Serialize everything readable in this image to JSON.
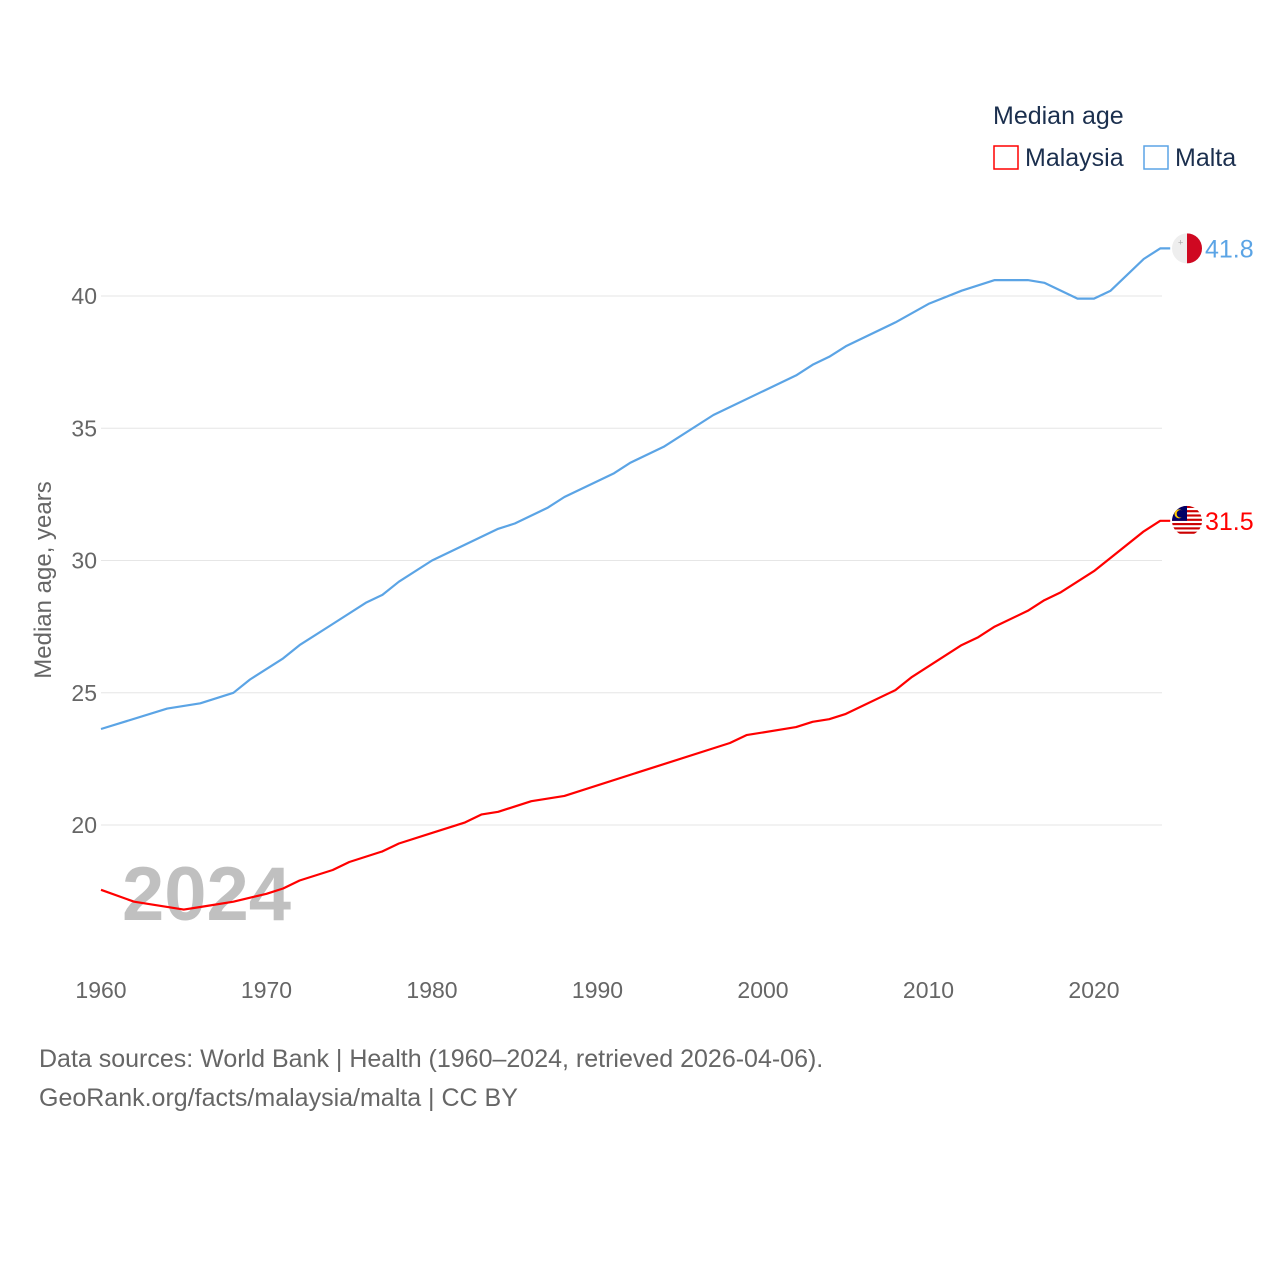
{
  "chart_data": {
    "type": "line",
    "title": "",
    "legend_title": "Median age",
    "legend_position": "top-right",
    "ylabel": "Median age, years",
    "xlabel": "",
    "xlim": [
      1960,
      2024
    ],
    "ylim": [
      15.5,
      42
    ],
    "x_ticks": [
      "1960",
      "1970",
      "1980",
      "1990",
      "2000",
      "2010",
      "2020"
    ],
    "y_ticks": [
      "20",
      "25",
      "30",
      "35",
      "40"
    ],
    "grid": true,
    "year_label": "2024",
    "series": [
      {
        "name": "Malaysia",
        "color": "#ff0000",
        "end_label": "31.5",
        "flag": "malaysia-flag",
        "points": [
          [
            1960,
            17.55
          ],
          [
            1962,
            17.1
          ],
          [
            1965,
            16.8
          ],
          [
            1966,
            16.9
          ],
          [
            1968,
            17.1
          ],
          [
            1970,
            17.4
          ],
          [
            1971,
            17.6
          ],
          [
            1972,
            17.9
          ],
          [
            1974,
            18.3
          ],
          [
            1975,
            18.6
          ],
          [
            1977,
            19.0
          ],
          [
            1978,
            19.3
          ],
          [
            1980,
            19.7
          ],
          [
            1982,
            20.1
          ],
          [
            1983,
            20.4
          ],
          [
            1984,
            20.5
          ],
          [
            1986,
            20.9
          ],
          [
            1988,
            21.1
          ],
          [
            1998,
            23.1
          ],
          [
            1999,
            23.4
          ],
          [
            2002,
            23.7
          ],
          [
            2003,
            23.9
          ],
          [
            2004,
            24.0
          ],
          [
            2005,
            24.2
          ],
          [
            2008,
            25.1
          ],
          [
            2009,
            25.6
          ],
          [
            2012,
            26.8
          ],
          [
            2013,
            27.1
          ],
          [
            2014,
            27.5
          ],
          [
            2016,
            28.1
          ],
          [
            2017,
            28.5
          ],
          [
            2018,
            28.8
          ],
          [
            2020,
            29.6
          ],
          [
            2023,
            31.1
          ],
          [
            2024,
            31.5
          ]
        ]
      },
      {
        "name": "Malta",
        "color": "#5ba4e5",
        "end_label": "41.8",
        "flag": "malta-flag",
        "points": [
          [
            1960,
            23.63
          ],
          [
            1964,
            24.4
          ],
          [
            1966,
            24.6
          ],
          [
            1968,
            25.0
          ],
          [
            1969,
            25.5
          ],
          [
            1971,
            26.3
          ],
          [
            1972,
            26.8
          ],
          [
            1974,
            27.6
          ],
          [
            1976,
            28.4
          ],
          [
            1977,
            28.7
          ],
          [
            1978,
            29.2
          ],
          [
            1980,
            30.0
          ],
          [
            1982,
            30.6
          ],
          [
            1984,
            31.2
          ],
          [
            1985,
            31.4
          ],
          [
            1987,
            32.0
          ],
          [
            1988,
            32.4
          ],
          [
            1991,
            33.3
          ],
          [
            1992,
            33.7
          ],
          [
            1994,
            34.3
          ],
          [
            1997,
            35.5
          ],
          [
            2000,
            36.4
          ],
          [
            2002,
            37.0
          ],
          [
            2003,
            37.4
          ],
          [
            2004,
            37.7
          ],
          [
            2005,
            38.1
          ],
          [
            2008,
            39.0
          ],
          [
            2010,
            39.7
          ],
          [
            2012,
            40.2
          ],
          [
            2014,
            40.6
          ],
          [
            2016,
            40.6
          ],
          [
            2017,
            40.5
          ],
          [
            2019,
            39.9
          ],
          [
            2020,
            39.9
          ],
          [
            2021,
            40.2
          ],
          [
            2023,
            41.4
          ],
          [
            2024,
            41.8
          ]
        ]
      }
    ]
  },
  "footer": {
    "sources": "Data sources: World Bank | Health (1960–2024, retrieved 2026-04-06).",
    "credit": "GeoRank.org/facts/malaysia/malta | CC BY"
  }
}
